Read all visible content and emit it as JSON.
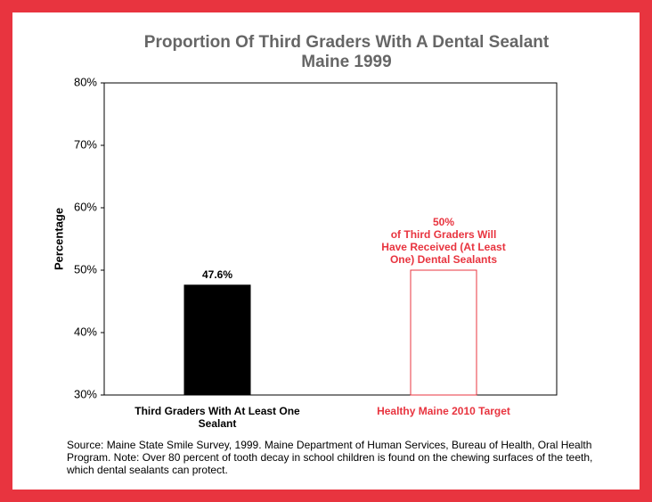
{
  "chart_data": {
    "type": "bar",
    "title": "Proportion Of Third Graders With A Dental Sealant",
    "subtitle": "Maine 1999",
    "ylabel": "Percentage",
    "categories": [
      "Third Graders With At Least One Sealant",
      "Healthy Maine 2010 Target"
    ],
    "values": [
      47.6,
      50
    ],
    "value_labels": [
      "47.6%",
      "50%"
    ],
    "colors": [
      "#000000",
      "#e8343f"
    ],
    "styles": [
      "filled",
      "outline"
    ],
    "annotation": [
      "of Third Graders Will",
      "Have Received (At Least",
      "One) Dental Sealants"
    ],
    "ylim": [
      30,
      80
    ],
    "yticks": [
      {
        "value": 30,
        "label": "30%"
      },
      {
        "value": 40,
        "label": "40%"
      },
      {
        "value": 50,
        "label": "50%"
      },
      {
        "value": 60,
        "label": "60%"
      },
      {
        "value": 70,
        "label": "70%"
      },
      {
        "value": 80,
        "label": "80%"
      }
    ],
    "grid": false,
    "source": "Source: Maine State Smile Survey, 1999. Maine Department of Human Services, Bureau of Health, Oral Health Program. Note: Over 80 percent of tooth decay in school children is found on the chewing surfaces of the teeth, which dental sealants can protect."
  }
}
